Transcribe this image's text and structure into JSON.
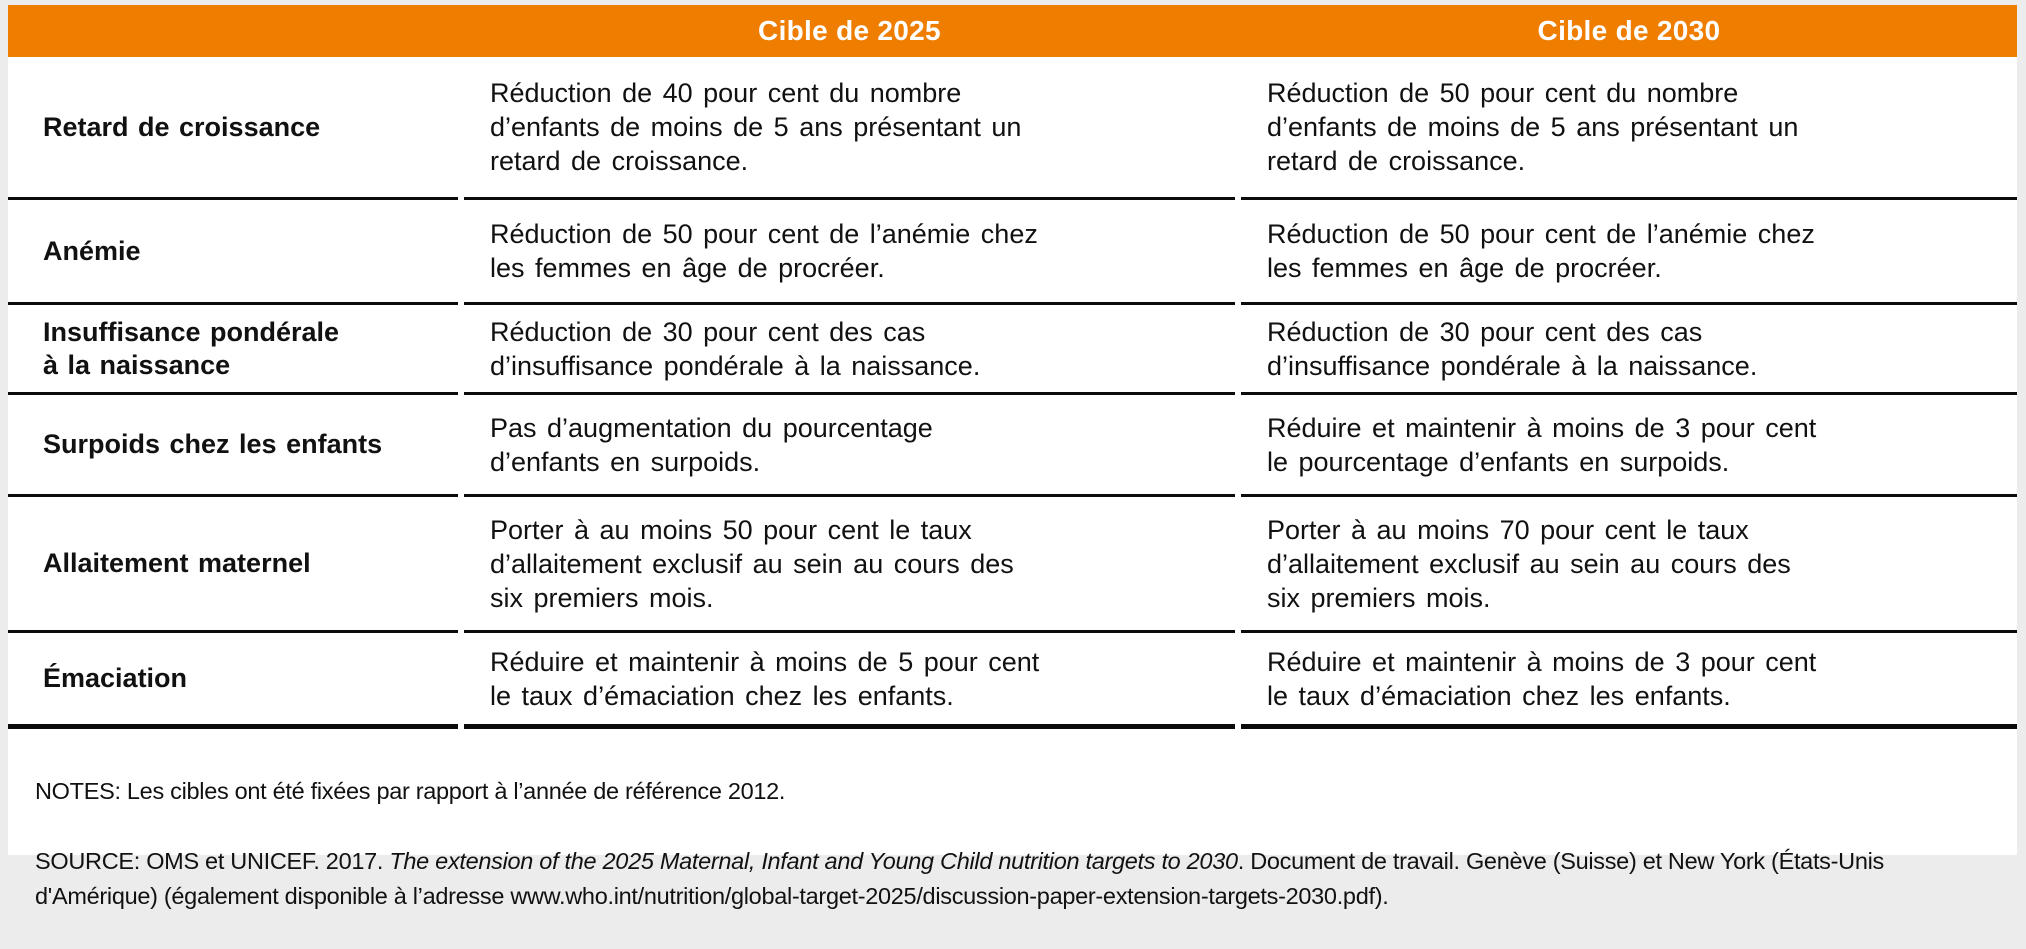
{
  "colors": {
    "accent_orange": "#EF7D00",
    "frame_gray": "#ECECEC",
    "rule_black": "#0B0B0B"
  },
  "header": {
    "col_2025": "Cible de 2025",
    "col_2030": "Cible de 2030"
  },
  "rows": [
    {
      "label": "Retard de croissance",
      "target2025": "Réduction de 40 pour cent du nombre\nd’enfants de moins de 5 ans présentant un\nretard de croissance.",
      "target2030": "Réduction de 50 pour cent du nombre\nd’enfants de moins de 5 ans présentant un\nretard de croissance."
    },
    {
      "label": "Anémie",
      "target2025": "Réduction de 50 pour cent de l’anémie chez\nles femmes en âge de procréer.",
      "target2030": "Réduction de 50 pour cent de l’anémie chez\nles femmes en âge de procréer."
    },
    {
      "label": "Insuffisance pondérale\nà la naissance",
      "target2025": "Réduction de 30 pour cent des cas\nd’insuffisance pondérale à la naissance.",
      "target2030": "Réduction de 30 pour cent des cas\nd’insuffisance pondérale à la naissance."
    },
    {
      "label": "Surpoids chez les enfants",
      "target2025": "Pas d’augmentation du pourcentage\nd’enfants en surpoids.",
      "target2030": "Réduire et maintenir à moins de 3 pour cent\nle pourcentage d’enfants en surpoids."
    },
    {
      "label": "Allaitement maternel",
      "target2025": "Porter à au moins 50 pour cent le taux\nd’allaitement exclusif au sein au cours des\nsix premiers mois.",
      "target2030": "Porter à au moins 70 pour cent le taux\nd’allaitement exclusif au sein au cours des\nsix premiers mois."
    },
    {
      "label": "Émaciation",
      "target2025": "Réduire et maintenir à moins de 5 pour cent\nle taux d’émaciation chez les enfants.",
      "target2030": "Réduire et maintenir à moins de 3 pour cent\nle taux d’émaciation chez les enfants."
    }
  ],
  "notes": {
    "notes_line": "NOTES: Les cibles ont été fixées par rapport à l’année de référence 2012.",
    "source_prefix": "SOURCE: OMS et UNICEF. 2017. ",
    "source_italic": "The extension of the 2025 Maternal, Infant and Young Child nutrition targets to 2030",
    "source_suffix": ". Document de travail. Genève (Suisse) et New York (États-Unis\nd'Amérique) (également disponible à l’adresse www.who.int/nutrition/global-target-2025/discussion-paper-extension-targets-2030.pdf)."
  }
}
